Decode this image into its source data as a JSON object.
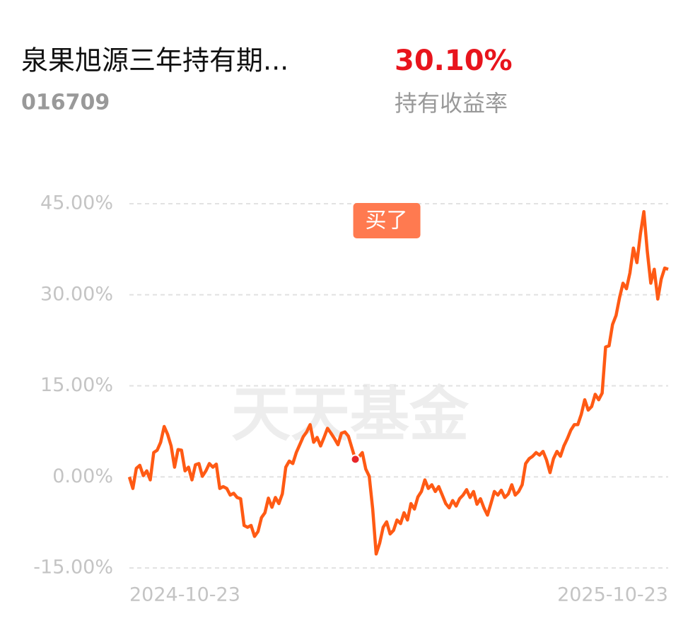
{
  "header": {
    "title": "泉果旭源三年持有期...",
    "code": "016709",
    "return_value": "30.10%",
    "return_label": "持有收益率"
  },
  "chart_data": {
    "type": "line",
    "watermark": "天天基金",
    "categories": [
      "2024-10-23",
      null,
      null,
      null,
      null,
      null,
      null,
      null,
      null,
      null,
      null,
      null,
      null,
      null,
      null,
      null,
      null,
      null,
      null,
      null,
      null,
      null,
      null,
      null,
      null,
      null,
      null,
      null,
      null,
      null,
      null,
      null,
      null,
      null,
      null,
      null,
      null,
      null,
      null,
      null,
      null,
      null,
      null,
      null,
      null,
      null,
      null,
      null,
      null,
      null,
      null,
      null,
      null,
      null,
      null,
      null,
      null,
      null,
      null,
      null,
      null,
      null,
      null,
      null,
      null,
      null,
      null,
      null,
      null,
      null,
      null,
      null,
      null,
      null,
      null,
      null,
      null,
      null,
      null,
      null,
      null,
      null,
      null,
      null,
      null,
      null,
      null,
      null,
      null,
      null,
      null,
      null,
      null,
      null,
      null,
      null,
      null,
      null,
      null,
      null,
      null,
      null,
      null,
      null,
      null,
      null,
      null,
      null,
      null,
      null,
      null,
      null,
      null,
      null,
      null,
      null,
      null,
      null,
      null,
      null,
      null,
      null,
      null,
      null,
      null,
      null,
      null,
      null,
      null,
      null,
      null,
      null,
      null,
      null,
      null,
      null,
      null,
      null,
      null,
      null,
      null,
      null,
      null,
      null,
      null,
      null,
      null,
      null,
      null,
      null,
      null,
      null,
      null,
      null,
      null,
      "2025-10-23"
    ],
    "series": [
      {
        "color": "#ff5a14",
        "values": [
          0,
          -1.9,
          1.4,
          1.9,
          0.2,
          1.0,
          -0.5,
          4,
          4.4,
          5.7,
          8.3,
          7,
          5.1,
          1.6,
          4.5,
          4.4,
          1,
          1.6,
          -0.5,
          2,
          2.2,
          0.1,
          1,
          2.2,
          1.6,
          2.1,
          -1.9,
          -1.6,
          -1.9,
          -3,
          -2.7,
          -3.4,
          -3.6,
          -8,
          -8.3,
          -8,
          -9.8,
          -9,
          -6.7,
          -5.9,
          -3.5,
          -5,
          -3.4,
          -4.4,
          -2.8,
          1.6,
          2.6,
          2.2,
          4,
          5.3,
          6.6,
          7.4,
          8.6,
          5.7,
          6.5,
          5.1,
          6.5,
          8,
          7.2,
          6.3,
          5.3,
          7.2,
          7.4,
          6.7,
          4.8,
          2.9,
          3.3,
          4,
          1.3,
          0.1,
          -5.3,
          -12.7,
          -10.9,
          -8.3,
          -7.4,
          -9.4,
          -8.8,
          -7.1,
          -7.7,
          -5.9,
          -7.1,
          -4.4,
          -5.3,
          -3.3,
          -2.4,
          -0.5,
          -1.9,
          -1.3,
          -2.4,
          -1.6,
          -3,
          -4.4,
          -5.1,
          -3.9,
          -4.8,
          -3.6,
          -3,
          -2.1,
          -3.4,
          -2.4,
          -4.5,
          -3.6,
          -5.1,
          -6.3,
          -4.4,
          -2.4,
          -3,
          -2.2,
          -3.4,
          -2.8,
          -1.3,
          -3,
          -2.4,
          -1.3,
          2.2,
          3,
          3.4,
          4,
          3.6,
          4.2,
          2.8,
          0.7,
          3,
          4.2,
          3.4,
          5.1,
          6.3,
          7.7,
          8.6,
          8.6,
          10.3,
          12.7,
          11,
          11.6,
          13.6,
          12.7,
          13.8,
          21.4,
          21.6,
          25.1,
          26.6,
          29.5,
          31.9,
          31.0,
          33.6,
          37.7,
          35.3,
          40,
          43.7,
          37.1,
          31.9,
          34.2,
          29.3,
          32.6,
          34.4,
          34.2
        ]
      }
    ],
    "annotation": {
      "text": "买了",
      "index": 65
    },
    "ylim": [
      -15,
      45
    ],
    "yticks": [
      {
        "value": 45,
        "label": "45.00%"
      },
      {
        "value": 30,
        "label": "30.00%"
      },
      {
        "value": 15,
        "label": "15.00%"
      },
      {
        "value": 0,
        "label": "0.00%"
      },
      {
        "value": -15,
        "label": "-15.00%"
      }
    ],
    "grid": true
  }
}
